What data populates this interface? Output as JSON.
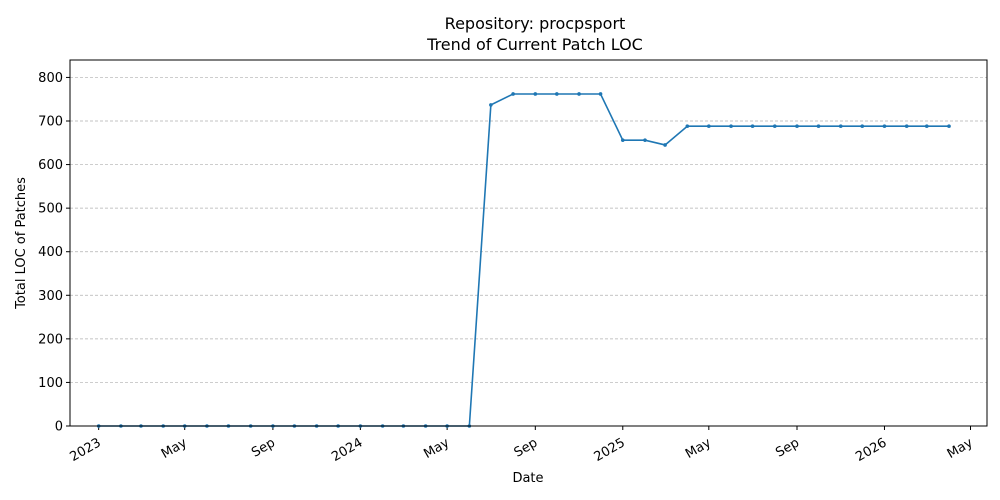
{
  "chart_data": {
    "type": "line",
    "title_line1": "Repository: procpsport",
    "title_line2": "Trend of Current Patch LOC",
    "xlabel": "Date",
    "ylabel": "Total LOC of Patches",
    "ylim": [
      0,
      840
    ],
    "yticks": [
      "0",
      "100",
      "200",
      "300",
      "400",
      "500",
      "600",
      "700",
      "800"
    ],
    "xlim": [
      "2022-11-22",
      "2026-05-24"
    ],
    "xticks": [
      {
        "date": "2023-01-01",
        "label": "2023"
      },
      {
        "date": "2023-05-01",
        "label": "May"
      },
      {
        "date": "2023-09-01",
        "label": "Sep"
      },
      {
        "date": "2024-01-01",
        "label": "2024"
      },
      {
        "date": "2024-05-01",
        "label": "May"
      },
      {
        "date": "2024-09-01",
        "label": "Sep"
      },
      {
        "date": "2025-01-01",
        "label": "2025"
      },
      {
        "date": "2025-05-01",
        "label": "May"
      },
      {
        "date": "2025-09-01",
        "label": "Sep"
      },
      {
        "date": "2026-01-01",
        "label": "2026"
      },
      {
        "date": "2026-05-01",
        "label": "May"
      }
    ],
    "grid": "y",
    "color": "#1f77b4",
    "series": [
      {
        "x": [
          "2023-01-01",
          "2023-02-01",
          "2023-03-01",
          "2023-04-01",
          "2023-05-01",
          "2023-06-01",
          "2023-07-01",
          "2023-08-01",
          "2023-09-01",
          "2023-10-01",
          "2023-11-01",
          "2023-12-01",
          "2024-01-01",
          "2024-02-01",
          "2024-03-01",
          "2024-04-01",
          "2024-05-01",
          "2024-06-01",
          "2024-07-01",
          "2024-08-01",
          "2024-09-01",
          "2024-10-01",
          "2024-11-01",
          "2024-12-01",
          "2025-01-01",
          "2025-02-01",
          "2025-03-01",
          "2025-04-01",
          "2025-05-01",
          "2025-06-01",
          "2025-07-01",
          "2025-08-01",
          "2025-09-01",
          "2025-10-01",
          "2025-11-01",
          "2025-12-01",
          "2026-01-01",
          "2026-02-01",
          "2026-03-01",
          "2026-04-01"
        ],
        "y": [
          0,
          0,
          0,
          0,
          0,
          0,
          0,
          0,
          0,
          0,
          0,
          0,
          0,
          0,
          0,
          0,
          0,
          0,
          737,
          762,
          762,
          762,
          762,
          762,
          656,
          656,
          645,
          688,
          688,
          688,
          688,
          688,
          688,
          688,
          688,
          688,
          688,
          688,
          688,
          688
        ]
      }
    ]
  }
}
